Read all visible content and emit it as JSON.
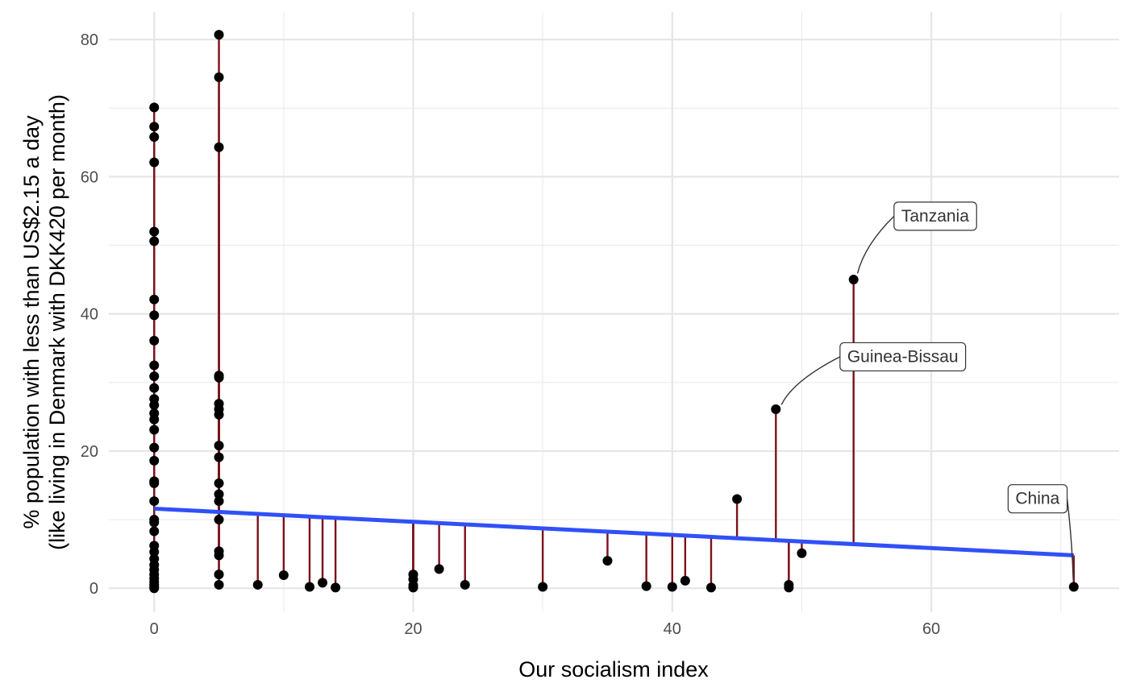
{
  "chart_data": {
    "type": "scatter",
    "xlabel": "Our socialism index",
    "ylabel_lines": [
      "% population with less than US$2.15 a day",
      "(like living in Denmark with DKK420 per month)"
    ],
    "xlim": [
      -3.5,
      74.5
    ],
    "ylim": [
      -3.5,
      84
    ],
    "x_ticks": [
      0,
      20,
      40,
      60
    ],
    "y_ticks": [
      0,
      20,
      40,
      60,
      80
    ],
    "grid": true,
    "trend_line": {
      "type": "linear",
      "intercept": 11.6,
      "slope": -0.0958,
      "color": "#3050f8",
      "x_range": [
        0,
        71
      ]
    },
    "residual_color": "#7b111a",
    "point_color": "#000000",
    "points": [
      {
        "x": 0,
        "y": 70.1
      },
      {
        "x": 0,
        "y": 67.3
      },
      {
        "x": 0,
        "y": 65.8
      },
      {
        "x": 0,
        "y": 62.1
      },
      {
        "x": 0,
        "y": 52.0
      },
      {
        "x": 0,
        "y": 50.6
      },
      {
        "x": 0,
        "y": 42.1
      },
      {
        "x": 0,
        "y": 39.8
      },
      {
        "x": 0,
        "y": 36.1
      },
      {
        "x": 0,
        "y": 32.5
      },
      {
        "x": 0,
        "y": 30.9
      },
      {
        "x": 0,
        "y": 29.2
      },
      {
        "x": 0,
        "y": 27.6
      },
      {
        "x": 0,
        "y": 26.7
      },
      {
        "x": 0,
        "y": 25.5
      },
      {
        "x": 0,
        "y": 24.6
      },
      {
        "x": 0,
        "y": 23.1
      },
      {
        "x": 0,
        "y": 20.5
      },
      {
        "x": 0,
        "y": 18.6
      },
      {
        "x": 0,
        "y": 15.6
      },
      {
        "x": 0,
        "y": 15.3
      },
      {
        "x": 0,
        "y": 12.7
      },
      {
        "x": 0,
        "y": 10.0
      },
      {
        "x": 0,
        "y": 9.6
      },
      {
        "x": 0,
        "y": 8.3
      },
      {
        "x": 0,
        "y": 6.2
      },
      {
        "x": 0,
        "y": 5.3
      },
      {
        "x": 0,
        "y": 4.3
      },
      {
        "x": 0,
        "y": 3.4
      },
      {
        "x": 0,
        "y": 2.7
      },
      {
        "x": 0,
        "y": 2.0
      },
      {
        "x": 0,
        "y": 1.4
      },
      {
        "x": 0,
        "y": 0.9
      },
      {
        "x": 0,
        "y": 0.5
      },
      {
        "x": 0,
        "y": 0.2
      },
      {
        "x": 0,
        "y": 0.0
      },
      {
        "x": 5,
        "y": 80.7
      },
      {
        "x": 5,
        "y": 74.5
      },
      {
        "x": 5,
        "y": 64.3
      },
      {
        "x": 5,
        "y": 31.0
      },
      {
        "x": 5,
        "y": 30.7
      },
      {
        "x": 5,
        "y": 26.9
      },
      {
        "x": 5,
        "y": 26.1
      },
      {
        "x": 5,
        "y": 25.3
      },
      {
        "x": 5,
        "y": 20.8
      },
      {
        "x": 5,
        "y": 19.1
      },
      {
        "x": 5,
        "y": 15.3
      },
      {
        "x": 5,
        "y": 13.7
      },
      {
        "x": 5,
        "y": 12.7
      },
      {
        "x": 5,
        "y": 10.0
      },
      {
        "x": 5,
        "y": 5.4
      },
      {
        "x": 5,
        "y": 4.8
      },
      {
        "x": 5,
        "y": 2.0
      },
      {
        "x": 5,
        "y": 0.5
      },
      {
        "x": 8,
        "y": 0.5
      },
      {
        "x": 10,
        "y": 1.9
      },
      {
        "x": 12,
        "y": 0.2
      },
      {
        "x": 13,
        "y": 0.8
      },
      {
        "x": 14,
        "y": 0.1
      },
      {
        "x": 20,
        "y": 2.0
      },
      {
        "x": 20,
        "y": 1.3
      },
      {
        "x": 20,
        "y": 0.4
      },
      {
        "x": 20,
        "y": 0.1
      },
      {
        "x": 22,
        "y": 2.8
      },
      {
        "x": 24,
        "y": 0.5
      },
      {
        "x": 30,
        "y": 0.2
      },
      {
        "x": 35,
        "y": 4.0
      },
      {
        "x": 38,
        "y": 0.3
      },
      {
        "x": 40,
        "y": 0.2
      },
      {
        "x": 41,
        "y": 1.1
      },
      {
        "x": 43,
        "y": 0.1
      },
      {
        "x": 45,
        "y": 13.0
      },
      {
        "x": 48,
        "y": 26.1,
        "label": "Guinea-Bissau"
      },
      {
        "x": 49,
        "y": 0.5
      },
      {
        "x": 49,
        "y": 0.1
      },
      {
        "x": 50,
        "y": 5.1
      },
      {
        "x": 54,
        "y": 45.0,
        "label": "Tanzania"
      },
      {
        "x": 71,
        "y": 0.2,
        "label": "China"
      }
    ],
    "annotations": [
      {
        "text": "Tanzania",
        "x": 60.3,
        "y": 54.3
      },
      {
        "text": "Guinea-Bissau",
        "x": 57.8,
        "y": 33.8
      },
      {
        "text": "China",
        "x": 68.2,
        "y": 13.1
      }
    ]
  }
}
